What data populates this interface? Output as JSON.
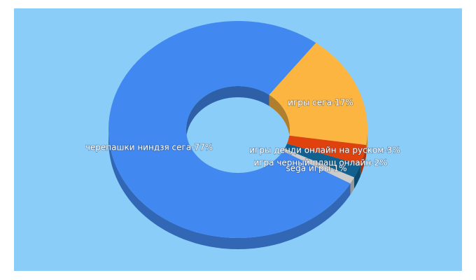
{
  "chart_data": {
    "type": "pie",
    "donut": true,
    "three_d": true,
    "series": [
      {
        "values": [
          77,
          17,
          3,
          2,
          1
        ],
        "value_labels": [
          "черепашки ниндзя сега-77%",
          "игры сега-17%",
          "игры денди онлайн на руском-3%",
          "игра черный плащ онлайн-2%",
          "sega игры-1%"
        ],
        "colors": [
          "#4189f0",
          "#fbb540",
          "#e0420e",
          "#10618f",
          "#cbcbcb"
        ]
      }
    ]
  }
}
